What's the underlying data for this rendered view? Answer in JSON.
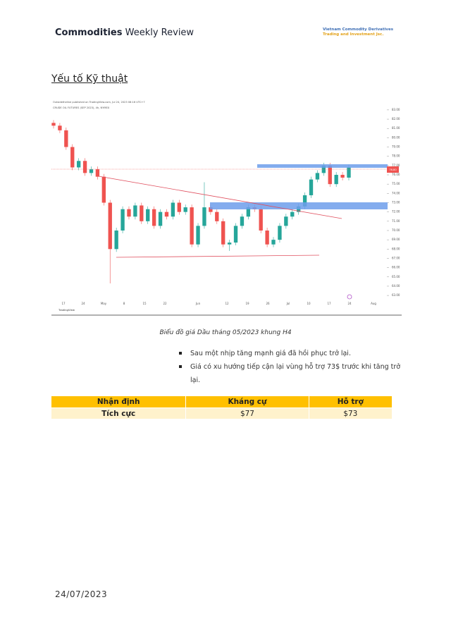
{
  "header": {
    "brand_bold": "Commodities",
    "brand_rest": "Weekly Review",
    "company_line1": "Vietnam Commodity Derivatives",
    "company_line2": "Trading and Investment Jsc."
  },
  "section_title": "Yếu tố Kỹ thuật",
  "chart_data": {
    "type": "candlestick",
    "title": "Outsidetheline published on TradingView.com, Jul 24, 2023 08:16 UTC+7",
    "subtitle": "CRUDE OIL FUTURES (SEP 2023), 4h, NYMEX",
    "last_price_label": "76.80",
    "source": "TradingView",
    "up_color": "#26a69a",
    "down_color": "#ef5350",
    "open": [
      81.6,
      81.3,
      80.8,
      79.0,
      76.8,
      77.5,
      76.2,
      76.6,
      75.8,
      73.0,
      68.0,
      70.0,
      72.3,
      71.5,
      72.7,
      71.0,
      72.3,
      70.5,
      72.0,
      71.5,
      73.0,
      72.0,
      72.5,
      68.5,
      70.5,
      72.5,
      72.0,
      71.0,
      68.5,
      68.7,
      70.5,
      71.5,
      72.5,
      72.3,
      70.0,
      68.5,
      69.0,
      70.5,
      71.5,
      72.0,
      72.6,
      73.8,
      75.5,
      76.2,
      77.0,
      75.0,
      76.0,
      75.7
    ],
    "high": [
      81.9,
      81.6,
      81.1,
      79.3,
      77.8,
      77.8,
      76.9,
      76.9,
      76.1,
      73.3,
      70.3,
      72.6,
      72.6,
      73.0,
      73.0,
      72.6,
      72.6,
      72.3,
      72.3,
      73.3,
      73.3,
      72.8,
      72.8,
      70.8,
      75.2,
      72.8,
      72.3,
      71.3,
      69.0,
      70.8,
      71.8,
      72.8,
      72.8,
      72.6,
      70.3,
      69.3,
      70.8,
      71.8,
      72.3,
      72.9,
      74.1,
      75.8,
      76.5,
      77.3,
      77.3,
      76.3,
      76.3,
      77.1
    ],
    "low": [
      81.0,
      80.5,
      78.7,
      76.5,
      76.5,
      75.9,
      75.9,
      75.5,
      72.7,
      64.3,
      67.7,
      69.7,
      71.2,
      71.2,
      70.7,
      70.7,
      70.2,
      70.2,
      71.2,
      71.2,
      71.7,
      71.7,
      68.2,
      68.2,
      70.2,
      71.7,
      70.7,
      68.2,
      67.8,
      68.4,
      70.2,
      71.2,
      72.0,
      69.7,
      68.2,
      68.2,
      68.7,
      70.2,
      71.2,
      71.7,
      72.3,
      73.5,
      75.2,
      75.9,
      74.7,
      74.7,
      75.4,
      75.4
    ],
    "close": [
      81.3,
      80.8,
      79.0,
      76.8,
      77.5,
      76.2,
      76.6,
      75.8,
      73.0,
      68.0,
      70.0,
      72.3,
      71.5,
      72.7,
      71.0,
      72.3,
      70.5,
      72.0,
      71.5,
      73.0,
      72.0,
      72.5,
      68.5,
      70.5,
      72.5,
      72.0,
      71.0,
      68.5,
      68.7,
      70.5,
      71.5,
      72.5,
      72.3,
      70.0,
      68.5,
      69.0,
      70.5,
      71.5,
      72.0,
      72.6,
      73.8,
      75.5,
      76.2,
      77.0,
      75.0,
      76.0,
      75.7,
      76.8
    ],
    "xtick_labels": [
      "17",
      "24",
      "May",
      "8",
      "15",
      "22",
      "Jun",
      "12",
      "19",
      "26",
      "Jul",
      "10",
      "17",
      "24",
      "Aug"
    ],
    "ylim": [
      62.4,
      83.6
    ],
    "yticks": [
      {
        "value": 83,
        "label": "83.00"
      },
      {
        "value": 82,
        "label": "82.00"
      },
      {
        "value": 81,
        "label": "81.00"
      },
      {
        "value": 80,
        "label": "80.00"
      },
      {
        "value": 79,
        "label": "79.00"
      },
      {
        "value": 78,
        "label": "78.00"
      },
      {
        "value": 77,
        "label": "77.00"
      },
      {
        "value": 76,
        "label": "76.00"
      },
      {
        "value": 75,
        "label": "75.00"
      },
      {
        "value": 74,
        "label": "74.00"
      },
      {
        "value": 73,
        "label": "73.00"
      },
      {
        "value": 72,
        "label": "72.00"
      },
      {
        "value": 71,
        "label": "71.00"
      },
      {
        "value": 70,
        "label": "70.00"
      },
      {
        "value": 69,
        "label": "69.00"
      },
      {
        "value": 68,
        "label": "68.00"
      },
      {
        "value": 67,
        "label": "67.00"
      },
      {
        "value": 66,
        "label": "66.00"
      },
      {
        "value": 65,
        "label": "65.00"
      },
      {
        "value": 64,
        "label": "64.00"
      },
      {
        "value": 63,
        "label": "63.00"
      }
    ]
  },
  "caption": "Biểu đồ giá Dầu tháng 05/2023 khung H4",
  "bullets": [
    "Sau một nhịp tăng mạnh giá đã hồi phục trở lại.",
    "Giá có xu hướng tiếp cận lại vùng hỗ trợ 73$ trước khi tăng trở lại."
  ],
  "table": {
    "header": [
      "Nhận định",
      "Kháng cự",
      "Hỗ trợ"
    ],
    "rows": [
      [
        "Tích cực",
        "$77",
        "$73"
      ]
    ]
  },
  "footer_date": "24/07/2023"
}
